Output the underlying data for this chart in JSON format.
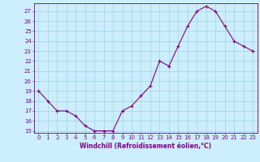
{
  "x": [
    0,
    1,
    2,
    3,
    4,
    5,
    6,
    7,
    8,
    9,
    10,
    11,
    12,
    13,
    14,
    15,
    16,
    17,
    18,
    19,
    20,
    21,
    22,
    23
  ],
  "y": [
    19,
    18,
    17,
    17,
    16.5,
    15.5,
    15,
    15,
    15,
    17,
    17.5,
    18.5,
    19.5,
    22,
    21.5,
    23.5,
    25.5,
    27,
    27.5,
    27,
    25.5,
    24,
    23.5,
    23
  ],
  "line_color": "#800080",
  "marker": "+",
  "background_color": "#cceeff",
  "grid_color": "#99cccc",
  "xlabel": "Windchill (Refroidissement éolien,°C)",
  "xlim": [
    -0.5,
    23.5
  ],
  "ylim_min": 14.8,
  "ylim_max": 27.8,
  "yticks": [
    15,
    16,
    17,
    18,
    19,
    20,
    21,
    22,
    23,
    24,
    25,
    26,
    27
  ],
  "xticks": [
    0,
    1,
    2,
    3,
    4,
    5,
    6,
    7,
    8,
    9,
    10,
    11,
    12,
    13,
    14,
    15,
    16,
    17,
    18,
    19,
    20,
    21,
    22,
    23
  ],
  "tick_color": "#800080",
  "label_color": "#800080",
  "spine_color": "#800080",
  "tick_fontsize": 5.0,
  "xlabel_fontsize": 5.5,
  "linewidth": 0.8,
  "markersize": 3.5,
  "markeredgewidth": 0.8
}
